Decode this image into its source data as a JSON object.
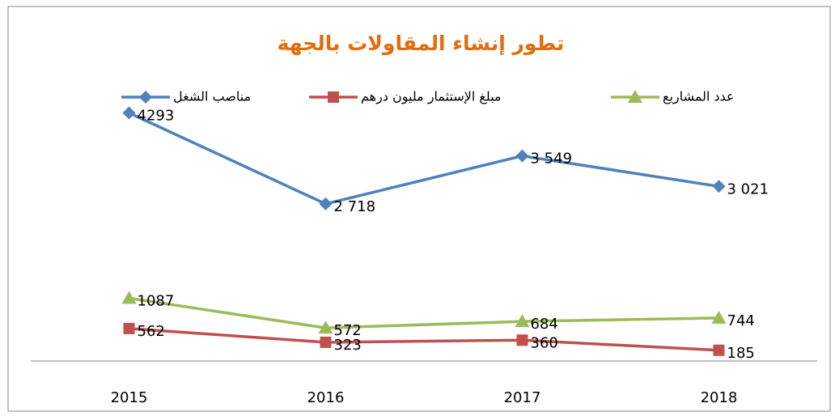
{
  "chart_data": {
    "type": "line",
    "title": "تطور إنشاء المقاولات بالجهة",
    "categories": [
      "2015",
      "2016",
      "2017",
      "2018"
    ],
    "series": [
      {
        "name": "مناصب الشغل",
        "color": "#4f81bd",
        "marker": "diamond",
        "values": [
          4293,
          2718,
          3549,
          3021
        ],
        "value_labels": [
          "4293",
          "2 718",
          "3 549",
          "3 021"
        ]
      },
      {
        "name": "مبلغ الإستثمار مليون درهم",
        "color": "#c0504d",
        "marker": "square",
        "values": [
          562,
          323,
          360,
          185
        ]
      },
      {
        "name": "عدد المشاريع",
        "color": "#9bbb59",
        "marker": "triangle",
        "values": [
          1087,
          572,
          684,
          744
        ]
      }
    ],
    "ylim": [
      0,
      5000
    ],
    "legend": "top"
  }
}
